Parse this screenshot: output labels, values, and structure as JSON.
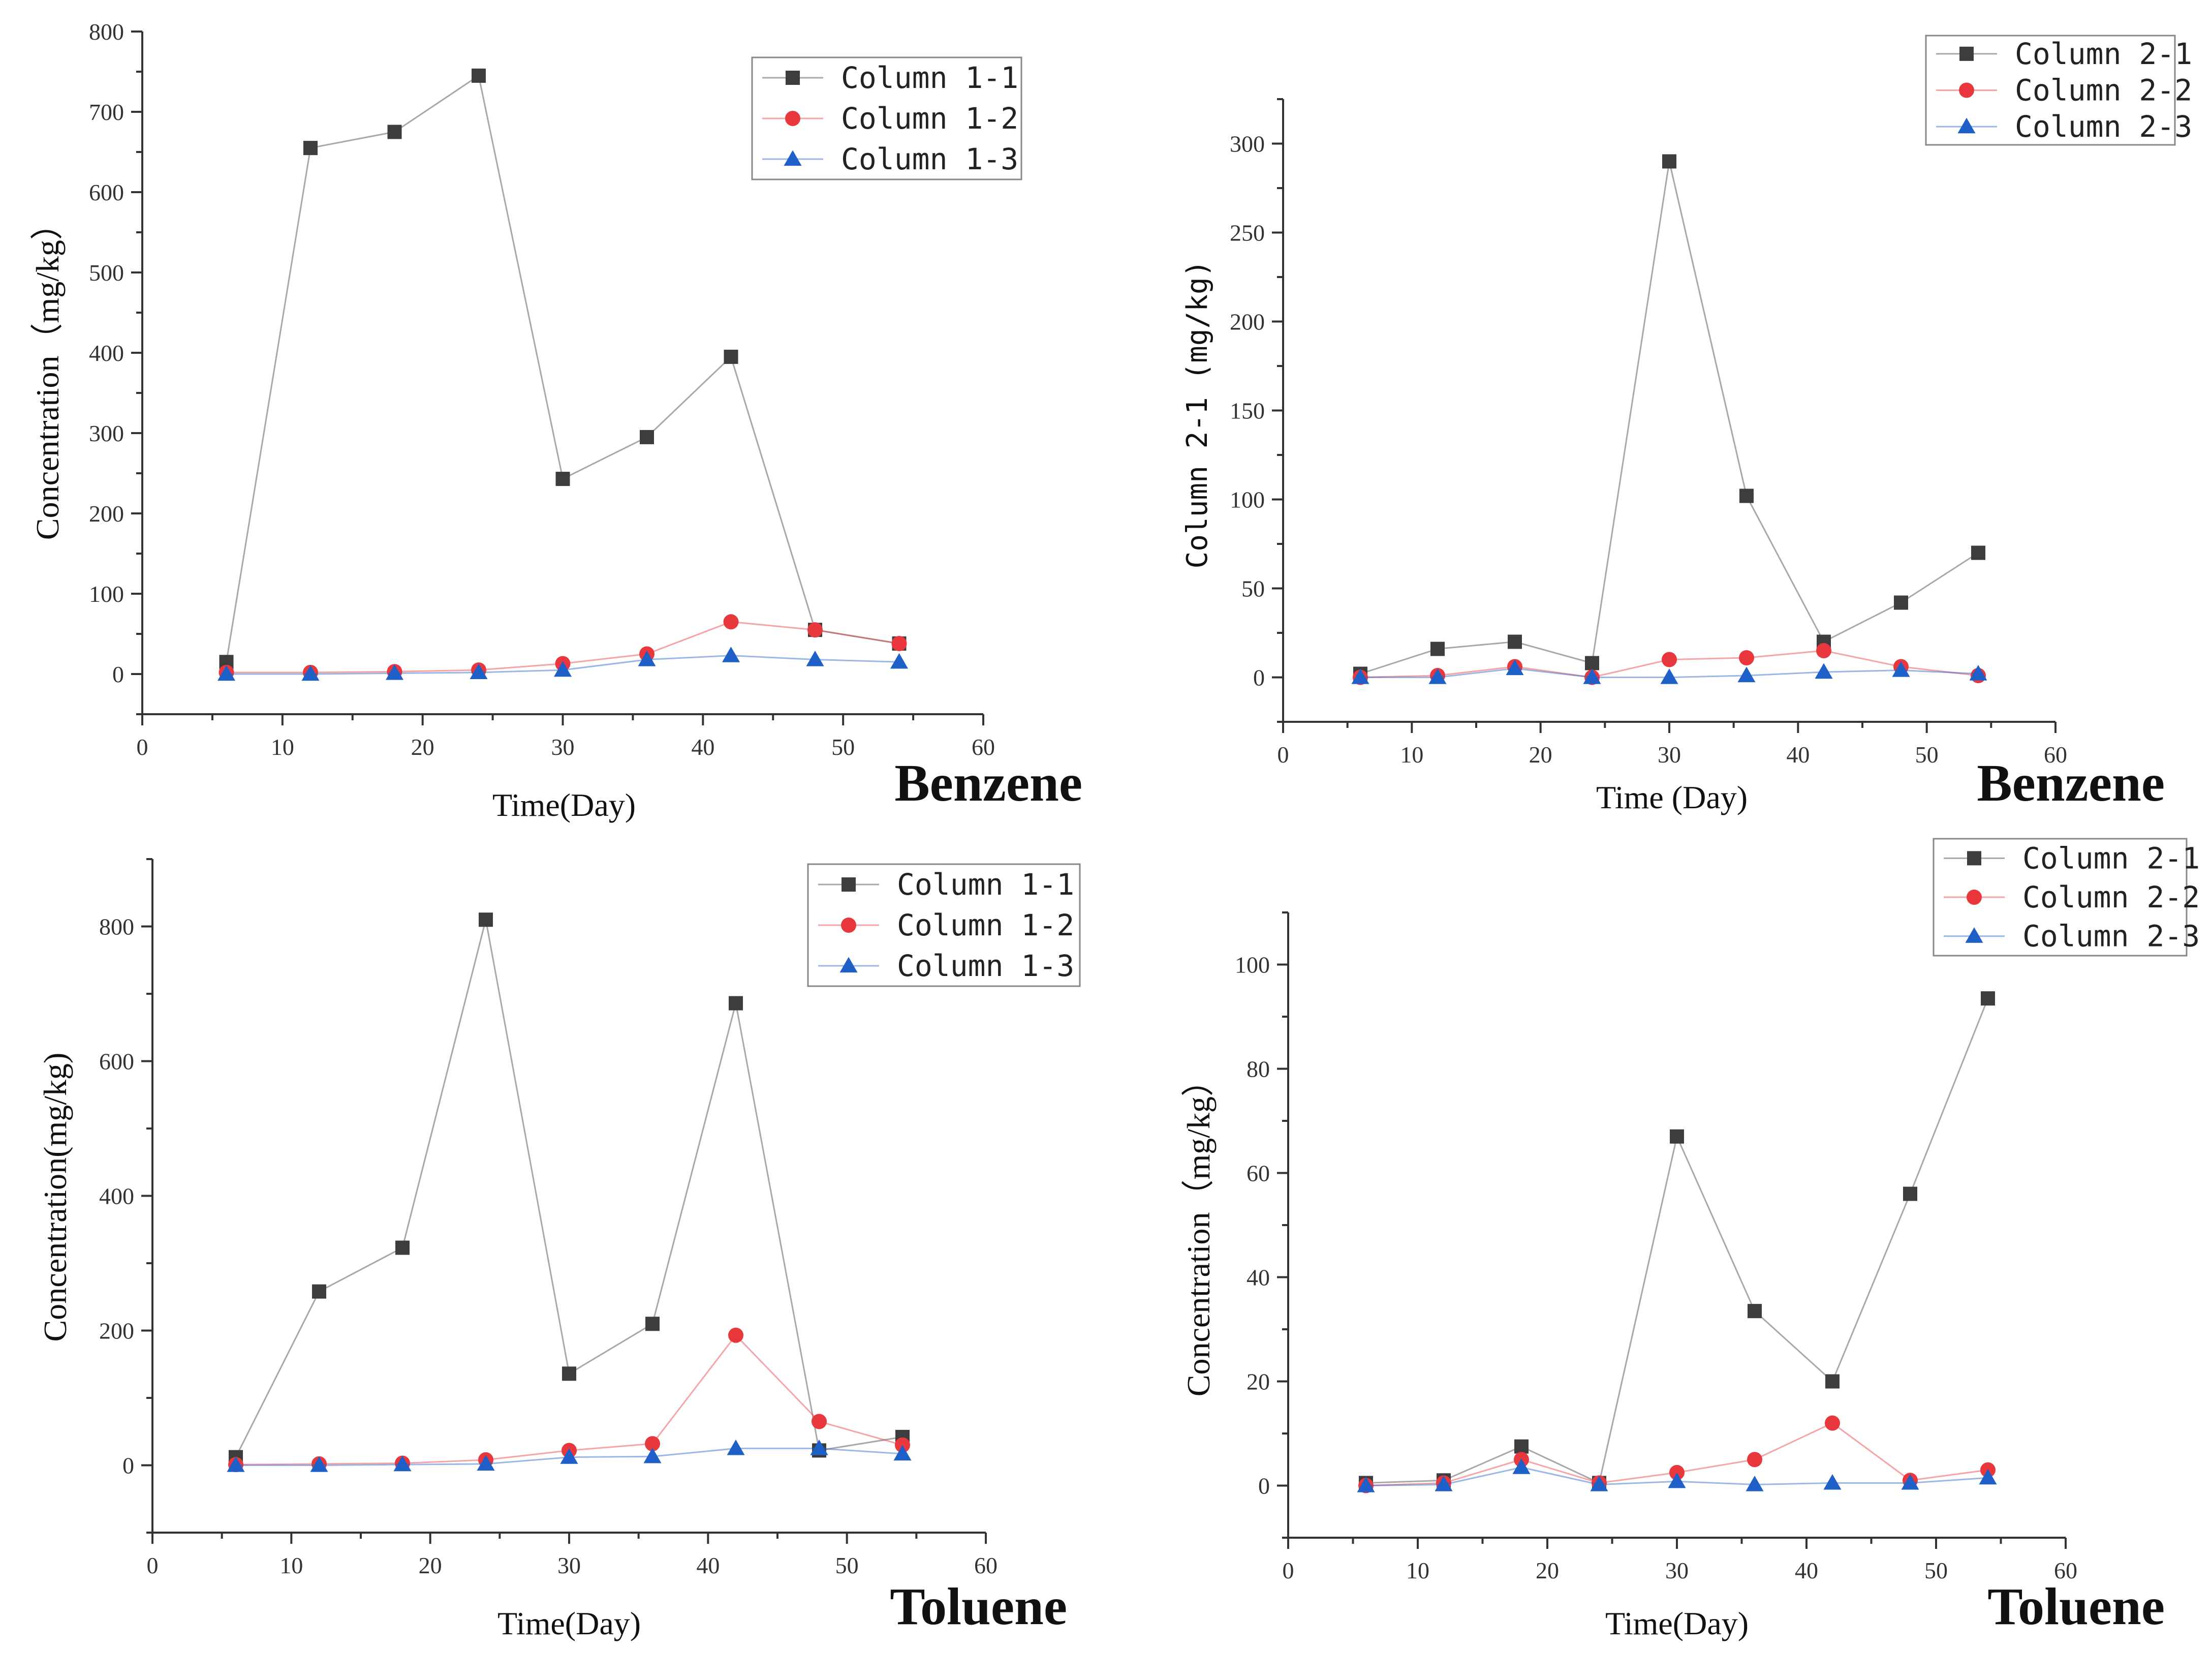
{
  "chart_data": [
    {
      "type": "line",
      "compound_label": "Benzene",
      "xlabel": "Time(Day)",
      "ylabel": "Concentration（mg/kg）",
      "xlim": [
        0,
        60
      ],
      "ylim": [
        -50,
        800
      ],
      "x_ticks": [
        0,
        10,
        20,
        30,
        40,
        50,
        60
      ],
      "y_ticks": [
        0,
        100,
        200,
        300,
        400,
        500,
        600,
        700,
        800
      ],
      "x": [
        6,
        12,
        18,
        24,
        30,
        36,
        42,
        48,
        54
      ],
      "legend_location": "top-right",
      "series": [
        {
          "name": "Column 1-1",
          "values": [
            15,
            655,
            675,
            745,
            243,
            295,
            395,
            55,
            38
          ],
          "color": "#3d3d3d",
          "marker": "square"
        },
        {
          "name": "Column 1-2",
          "values": [
            2,
            2,
            3,
            5,
            13,
            25,
            65,
            55,
            38
          ],
          "color": "#e8383d",
          "marker": "circle"
        },
        {
          "name": "Column 1-3",
          "values": [
            0,
            0,
            1,
            2,
            5,
            18,
            23,
            18,
            15
          ],
          "color": "#1f5fc8",
          "marker": "triangle"
        }
      ]
    },
    {
      "type": "line",
      "compound_label": "Benzene",
      "xlabel": "Time (Day)",
      "ylabel": "Column 2-1 (mg/kg)",
      "xlim": [
        0,
        60
      ],
      "ylim": [
        -25,
        325
      ],
      "x_ticks": [
        0,
        10,
        20,
        30,
        40,
        50,
        60
      ],
      "y_ticks": [
        0,
        50,
        100,
        150,
        200,
        250,
        300
      ],
      "x": [
        6,
        12,
        18,
        24,
        30,
        36,
        42,
        48,
        54
      ],
      "legend_location": "top-right",
      "series": [
        {
          "name": "Column 2-1",
          "values": [
            2,
            16,
            20,
            8,
            290,
            102,
            20,
            42,
            70
          ],
          "color": "#3d3d3d",
          "marker": "square"
        },
        {
          "name": "Column 2-2",
          "values": [
            0,
            1,
            6,
            0,
            10,
            11,
            15,
            6,
            1
          ],
          "color": "#e8383d",
          "marker": "circle"
        },
        {
          "name": "Column 2-3",
          "values": [
            0,
            0,
            5,
            0,
            0,
            1,
            3,
            4,
            2
          ],
          "color": "#1f5fc8",
          "marker": "triangle"
        }
      ]
    },
    {
      "type": "line",
      "compound_label": "Toluene",
      "xlabel": "Time(Day)",
      "ylabel": "Concentration(mg/kg)",
      "xlim": [
        0,
        60
      ],
      "ylim": [
        -100,
        900
      ],
      "x_ticks": [
        0,
        10,
        20,
        30,
        40,
        50,
        60
      ],
      "y_ticks": [
        0,
        200,
        400,
        600,
        800
      ],
      "x": [
        6,
        12,
        18,
        24,
        30,
        36,
        42,
        48,
        54
      ],
      "legend_location": "top-right",
      "series": [
        {
          "name": "Column 1-1",
          "values": [
            12,
            258,
            323,
            810,
            136,
            210,
            686,
            22,
            42
          ],
          "color": "#3d3d3d",
          "marker": "square"
        },
        {
          "name": "Column 1-2",
          "values": [
            1,
            2,
            3,
            8,
            22,
            32,
            193,
            65,
            30
          ],
          "color": "#e8383d",
          "marker": "circle"
        },
        {
          "name": "Column 1-3",
          "values": [
            0,
            0,
            1,
            2,
            12,
            13,
            25,
            25,
            17
          ],
          "color": "#1f5fc8",
          "marker": "triangle"
        }
      ]
    },
    {
      "type": "line",
      "compound_label": "Toluene",
      "xlabel": "Time(Day)",
      "ylabel": "Concentration（mg/kg）",
      "xlim": [
        0,
        60
      ],
      "ylim": [
        -10,
        110
      ],
      "x_ticks": [
        0,
        10,
        20,
        30,
        40,
        50,
        60
      ],
      "y_ticks": [
        0,
        20,
        40,
        60,
        80,
        100
      ],
      "x": [
        6,
        12,
        18,
        24,
        30,
        36,
        42,
        48,
        54
      ],
      "legend_location": "top-right",
      "series": [
        {
          "name": "Column 2-1",
          "values": [
            0.5,
            1,
            7.5,
            0.5,
            67,
            33.5,
            20,
            56,
            93.5
          ],
          "color": "#3d3d3d",
          "marker": "square"
        },
        {
          "name": "Column 2-2",
          "values": [
            0,
            0.5,
            5,
            0.5,
            2.5,
            5,
            12,
            1,
            3
          ],
          "color": "#e8383d",
          "marker": "circle"
        },
        {
          "name": "Column 2-3",
          "values": [
            0,
            0.2,
            3.5,
            0.2,
            0.8,
            0.2,
            0.5,
            0.5,
            1.5
          ],
          "color": "#1f5fc8",
          "marker": "triangle"
        }
      ]
    }
  ]
}
